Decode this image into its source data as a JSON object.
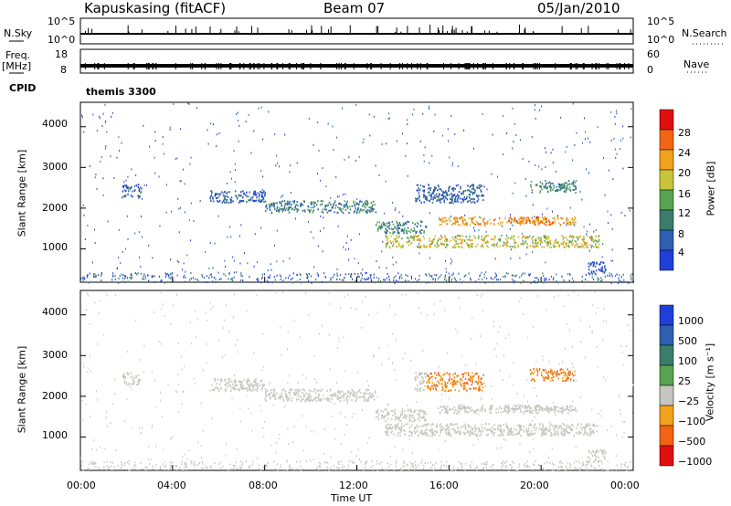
{
  "header": {
    "station": "Kapuskasing (fitACF)",
    "beam": "Beam 07",
    "date": "05/Jan/2010"
  },
  "nsky_panel": {
    "left_label": "N.Sky",
    "right_label": "N.Search",
    "left_ticks": [
      "10^5",
      "10^0"
    ],
    "right_ticks": [
      "10^5",
      "10^0"
    ]
  },
  "freq_panel": {
    "left_label_top": "Freq.",
    "left_label_unit": "[MHz]",
    "left_ticks": [
      "18",
      "8"
    ],
    "right_label": "Nave",
    "right_ticks": [
      "60",
      "0"
    ]
  },
  "cpid_panel": {
    "label": "CPID",
    "program": "themis 3300"
  },
  "chart_data": [
    {
      "type": "heatmap",
      "name": "power",
      "ylabel": "Slant Range [km]",
      "xlabel": "",
      "y_ticks": [
        "1000",
        "2000",
        "3000",
        "4000"
      ],
      "ylim": [
        180,
        4600
      ],
      "colorbar_label": "Power [dB]",
      "colorbar_ticks": [
        "4",
        "8",
        "12",
        "16",
        "20",
        "24",
        "28"
      ],
      "colors": [
        "#1f3fd8",
        "#2e5fb0",
        "#3a7d6a",
        "#57a351",
        "#c9c33a",
        "#f2a11a",
        "#f06414",
        "#e01010"
      ],
      "bands": [
        {
          "x": [
            1.8,
            2.6
          ],
          "y": [
            2300,
            2600
          ],
          "level": 1
        },
        {
          "x": [
            5.5,
            8.0
          ],
          "y": [
            2150,
            2450
          ],
          "level": 1
        },
        {
          "x": [
            8.0,
            12.8
          ],
          "y": [
            1900,
            2200
          ],
          "level": 2
        },
        {
          "x": [
            12.8,
            15.0
          ],
          "y": [
            1400,
            1700
          ],
          "level": 2
        },
        {
          "x": [
            13.2,
            22.5
          ],
          "y": [
            1050,
            1350
          ],
          "level": 4
        },
        {
          "x": [
            15.5,
            21.5
          ],
          "y": [
            1600,
            1800
          ],
          "level": 5
        },
        {
          "x": [
            18.5,
            20.5
          ],
          "y": [
            1650,
            1800
          ],
          "level": 6
        },
        {
          "x": [
            14.5,
            17.5
          ],
          "y": [
            2150,
            2600
          ],
          "level": 1
        },
        {
          "x": [
            19.5,
            21.5
          ],
          "y": [
            2400,
            2700
          ],
          "level": 2
        },
        {
          "x": [
            22.0,
            22.8
          ],
          "y": [
            400,
            700
          ],
          "level": 0
        }
      ]
    },
    {
      "type": "heatmap",
      "name": "velocity",
      "ylabel": "Slant Range [km]",
      "xlabel": "Time UT",
      "x_ticks": [
        "00:00",
        "04:00",
        "08:00",
        "12:00",
        "16:00",
        "20:00",
        "00:00"
      ],
      "y_ticks": [
        "1000",
        "2000",
        "3000",
        "4000"
      ],
      "ylim": [
        180,
        4600
      ],
      "colorbar_label": "Velocity [m s⁻¹]",
      "colorbar_ticks": [
        "1000",
        "500",
        "100",
        "25",
        "−25",
        "−100",
        "−500",
        "−1000"
      ],
      "colors": [
        "#1f3fd8",
        "#2e5fb0",
        "#3a7d6a",
        "#57a351",
        "#c6c6c0",
        "#f2a11a",
        "#f06414",
        "#e01010"
      ]
    }
  ]
}
